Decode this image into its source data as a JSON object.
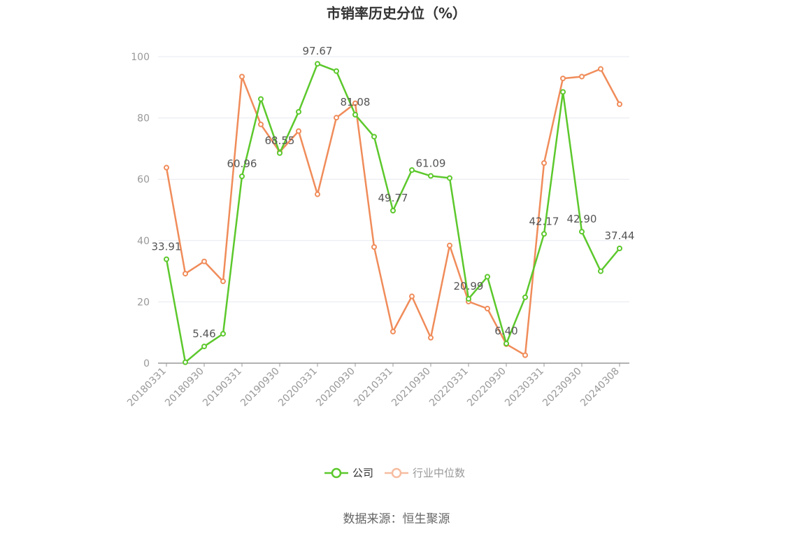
{
  "chart_data": {
    "type": "line",
    "title": "市销率历史分位（%）",
    "source": "数据来源：恒生聚源",
    "ylim": [
      0,
      100
    ],
    "yticks": [
      0,
      20,
      40,
      60,
      80,
      100
    ],
    "x": [
      "20180331",
      "20180630",
      "20180930",
      "20181231",
      "20190331",
      "20190630",
      "20190930",
      "20191231",
      "20200331",
      "20200630",
      "20200930",
      "20201231",
      "20210331",
      "20210630",
      "20210930",
      "20211231",
      "20220331",
      "20220630",
      "20220930",
      "20221231",
      "20230331",
      "20230630",
      "20230930",
      "20231231",
      "20240308"
    ],
    "xtick_labels": [
      "20180331",
      "20180930",
      "20190331",
      "20190930",
      "20200331",
      "20200930",
      "20210331",
      "20210930",
      "20220331",
      "20220930",
      "20230331",
      "20230930",
      "20240308"
    ],
    "grid": true,
    "legend_position": "bottom-center",
    "series": [
      {
        "name": "公司",
        "color": "#5cc82c",
        "values": [
          33.91,
          0.3,
          5.46,
          9.6,
          60.96,
          86.2,
          68.55,
          82.0,
          97.67,
          95.3,
          81.08,
          73.9,
          49.77,
          63.0,
          61.09,
          60.4,
          20.99,
          28.2,
          6.4,
          21.5,
          42.17,
          88.5,
          42.9,
          30.0,
          37.44
        ],
        "labels": {
          "0": "33.91",
          "2": "5.46",
          "4": "60.96",
          "6": "68.55",
          "8": "97.67",
          "10": "81.08",
          "12": "49.77",
          "14": "61.09",
          "16": "20.99",
          "18": "6.40",
          "20": "42.17",
          "22": "42.90",
          "24": "37.44"
        }
      },
      {
        "name": "行业中位数",
        "color": "#f08c5a",
        "values": [
          63.8,
          29.2,
          33.2,
          26.7,
          93.5,
          77.9,
          68.9,
          75.7,
          55.1,
          80.1,
          84.8,
          37.9,
          10.3,
          21.8,
          8.3,
          38.4,
          20.1,
          17.8,
          6.2,
          2.6,
          65.3,
          92.9,
          93.5,
          96.0,
          84.5
        ]
      }
    ]
  }
}
